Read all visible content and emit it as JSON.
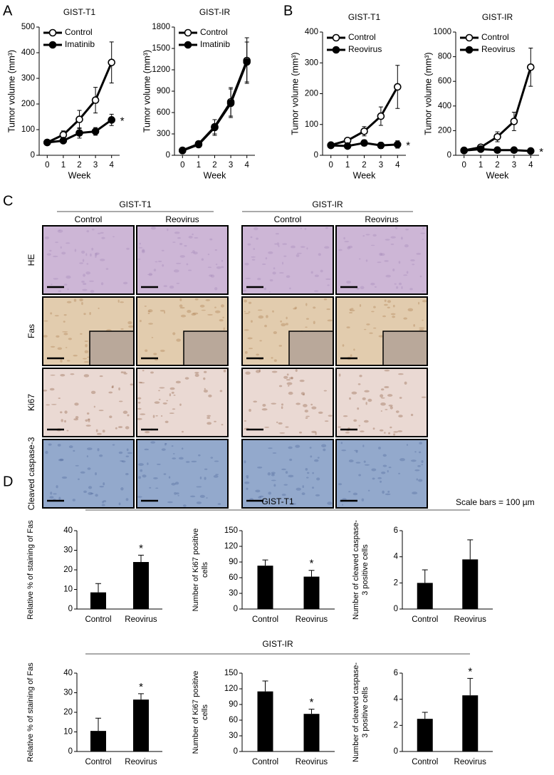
{
  "panel_labels": [
    "A",
    "B",
    "C",
    "D"
  ],
  "chart_data": [
    {
      "type": "line",
      "title": "GIST-T1",
      "xlabel": "Week",
      "ylabel": "Tumor volume (mm³)",
      "x": [
        0,
        1,
        2,
        3,
        4
      ],
      "xlim": [
        -0.5,
        4.5
      ],
      "xticks": [
        0,
        1,
        2,
        3,
        4
      ],
      "ylim": [
        0,
        500
      ],
      "yticks": [
        0,
        100,
        200,
        300,
        400,
        500
      ],
      "annotation": "*",
      "series": [
        {
          "name": "Control",
          "color": "#000000",
          "marker_fill": "#ffffff",
          "values": [
            50,
            80,
            140,
            215,
            362
          ],
          "errors": [
            5,
            15,
            35,
            50,
            80
          ]
        },
        {
          "name": "Imatinib",
          "color": "#000000",
          "marker_fill": "#000000",
          "values": [
            50,
            57,
            87,
            93,
            138
          ],
          "errors": [
            5,
            8,
            20,
            15,
            22
          ]
        }
      ]
    },
    {
      "type": "line",
      "title": "GIST-IR",
      "xlabel": "Week",
      "ylabel": "Tumor volume (mm³)",
      "x": [
        0,
        1,
        2,
        3,
        4
      ],
      "xlim": [
        -0.5,
        4.5
      ],
      "xticks": [
        0,
        1,
        2,
        3,
        4
      ],
      "ylim": [
        0,
        1800
      ],
      "yticks": [
        0,
        300,
        600,
        900,
        1200,
        1500,
        1800
      ],
      "series": [
        {
          "name": "Control",
          "color": "#000000",
          "marker_fill": "#ffffff",
          "values": [
            70,
            160,
            400,
            750,
            1330
          ],
          "errors": [
            20,
            40,
            100,
            200,
            320
          ]
        },
        {
          "name": "Imatinib",
          "color": "#000000",
          "marker_fill": "#000000",
          "values": [
            65,
            150,
            390,
            730,
            1310
          ],
          "errors": [
            15,
            40,
            110,
            200,
            280
          ]
        }
      ]
    },
    {
      "type": "line",
      "title": "GIST-T1",
      "xlabel": "Week",
      "ylabel": "Tumor volume (mm³)",
      "x": [
        0,
        1,
        2,
        3,
        4
      ],
      "xlim": [
        -0.5,
        4.5
      ],
      "xticks": [
        0,
        1,
        2,
        3,
        4
      ],
      "ylim": [
        0,
        400
      ],
      "yticks": [
        0,
        100,
        200,
        300,
        400
      ],
      "annotation": "*",
      "series": [
        {
          "name": "Control",
          "color": "#000000",
          "marker_fill": "#ffffff",
          "values": [
            33,
            48,
            78,
            127,
            222
          ],
          "errors": [
            5,
            8,
            15,
            30,
            70
          ]
        },
        {
          "name": "Reovirus",
          "color": "#000000",
          "marker_fill": "#000000",
          "values": [
            32,
            30,
            40,
            32,
            35
          ],
          "errors": [
            5,
            5,
            10,
            10,
            12
          ]
        }
      ]
    },
    {
      "type": "line",
      "title": "GIST-IR",
      "xlabel": "Week",
      "ylabel": "Tumor volume (mm³)",
      "x": [
        0,
        1,
        2,
        3,
        4
      ],
      "xlim": [
        -0.5,
        4.5
      ],
      "xticks": [
        0,
        1,
        2,
        3,
        4
      ],
      "ylim": [
        0,
        1000
      ],
      "yticks": [
        0,
        200,
        400,
        600,
        800,
        1000
      ],
      "annotation": "*",
      "series": [
        {
          "name": "Control",
          "color": "#000000",
          "marker_fill": "#ffffff",
          "values": [
            40,
            65,
            150,
            275,
            715
          ],
          "errors": [
            10,
            15,
            40,
            75,
            155
          ]
        },
        {
          "name": "Reovirus",
          "color": "#000000",
          "marker_fill": "#000000",
          "values": [
            38,
            50,
            42,
            42,
            35
          ],
          "errors": [
            8,
            10,
            8,
            8,
            8
          ]
        }
      ]
    },
    {
      "type": "bar",
      "ylabel": "Relative % of staining of Fas",
      "categories": [
        "Control",
        "Reovirus"
      ],
      "values": [
        8.5,
        24
      ],
      "errors": [
        4.5,
        3.5
      ],
      "color": "#000000",
      "ylim": [
        0,
        40
      ],
      "yticks": [
        0,
        10,
        20,
        30,
        40
      ],
      "annotation": "*"
    },
    {
      "type": "bar",
      "ylabel": "Number of Ki67 positive cells",
      "categories": [
        "Control",
        "Reovirus"
      ],
      "values": [
        83,
        62
      ],
      "errors": [
        11,
        12
      ],
      "color": "#000000",
      "ylim": [
        0,
        150
      ],
      "yticks": [
        0,
        30,
        60,
        90,
        120,
        150
      ],
      "annotation": "*"
    },
    {
      "type": "bar",
      "ylabel": "Number of cleaved caspase-3 positive cells",
      "categories": [
        "Control",
        "Reovirus"
      ],
      "values": [
        2,
        3.8
      ],
      "errors": [
        1,
        1.5
      ],
      "color": "#000000",
      "ylim": [
        0,
        6
      ],
      "yticks": [
        0,
        2,
        4,
        6
      ]
    },
    {
      "type": "bar",
      "ylabel": "Relative % of staining of Fas",
      "categories": [
        "Control",
        "Reovirus"
      ],
      "values": [
        10.5,
        26.5
      ],
      "errors": [
        6.5,
        3
      ],
      "color": "#000000",
      "ylim": [
        0,
        40
      ],
      "yticks": [
        0,
        10,
        20,
        30,
        40
      ],
      "annotation": "*"
    },
    {
      "type": "bar",
      "ylabel": "Number of Ki67 positive cells",
      "categories": [
        "Control",
        "Reovirus"
      ],
      "values": [
        115,
        72
      ],
      "errors": [
        20,
        9
      ],
      "color": "#000000",
      "ylim": [
        0,
        150
      ],
      "yticks": [
        0,
        30,
        60,
        90,
        120,
        150
      ],
      "annotation": "*"
    },
    {
      "type": "bar",
      "ylabel": "Number of cleaved caspase-3 positive cells",
      "categories": [
        "Control",
        "Reovirus"
      ],
      "values": [
        2.5,
        4.3
      ],
      "errors": [
        0.5,
        1.3
      ],
      "color": "#000000",
      "ylim": [
        0,
        6
      ],
      "yticks": [
        0,
        2,
        4,
        6
      ],
      "annotation": "*"
    }
  ],
  "panel_c": {
    "groups": [
      {
        "title": "GIST-T1",
        "columns": [
          "Control",
          "Reovirus"
        ]
      },
      {
        "title": "GIST-IR",
        "columns": [
          "Control",
          "Reovirus"
        ]
      }
    ],
    "rows": [
      "HE",
      "Fas",
      "Ki67",
      "Cleaved caspase-3"
    ],
    "note": "Scale bars = 100 µm"
  },
  "panel_d": {
    "titles": [
      "GIST-T1",
      "GIST-IR"
    ]
  }
}
